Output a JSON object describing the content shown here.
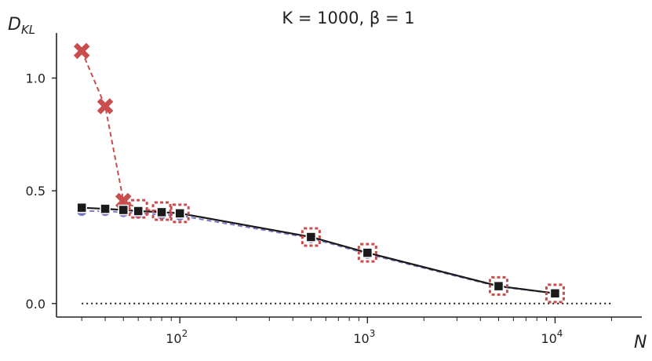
{
  "chart_data": {
    "type": "line",
    "title": "K = 1000,  β = 1",
    "xlabel": "N",
    "ylabel": "D_KL",
    "xscale": "log",
    "xlim": [
      22,
      29000
    ],
    "ylim": [
      -0.06,
      1.2
    ],
    "xticks": [
      {
        "value": 100,
        "base": "10",
        "exp": "2"
      },
      {
        "value": 1000,
        "base": "10",
        "exp": "3"
      },
      {
        "value": 10000,
        "base": "10",
        "exp": "4"
      }
    ],
    "yticks": [
      {
        "value": 0.0,
        "label": "0.0"
      },
      {
        "value": 0.5,
        "label": "0.5"
      },
      {
        "value": 1.0,
        "label": "1.0"
      }
    ],
    "grid": false,
    "series": [
      {
        "marker": "circle",
        "style": "dashed",
        "color": "#7b79c9",
        "x": [
          30,
          40,
          50,
          60,
          80,
          100,
          500,
          1000,
          5000,
          10000
        ],
        "y": [
          0.41,
          0.41,
          0.405,
          0.4,
          0.395,
          0.39,
          0.29,
          0.22,
          0.075,
          0.045
        ]
      },
      {
        "marker": "x",
        "style": "dashed",
        "color": "#c94d4d",
        "x": [
          30,
          40,
          50,
          60,
          80,
          100,
          500,
          1000,
          5000,
          10000
        ],
        "y": [
          1.12,
          0.875,
          0.455,
          0.42,
          0.41,
          0.4,
          0.295,
          0.225,
          0.078,
          0.045
        ]
      },
      {
        "marker": "square",
        "style": "solid",
        "color": "#1a1a1a",
        "x": [
          30,
          40,
          50,
          60,
          80,
          100,
          500,
          1000,
          5000,
          10000
        ],
        "y": [
          0.425,
          0.42,
          0.415,
          0.41,
          0.405,
          0.4,
          0.295,
          0.225,
          0.077,
          0.045
        ]
      }
    ],
    "reference_line": {
      "y": 0.0,
      "style": "dotted",
      "color": "#1a1a1a",
      "x_from": 30,
      "x_to": 20000
    }
  }
}
